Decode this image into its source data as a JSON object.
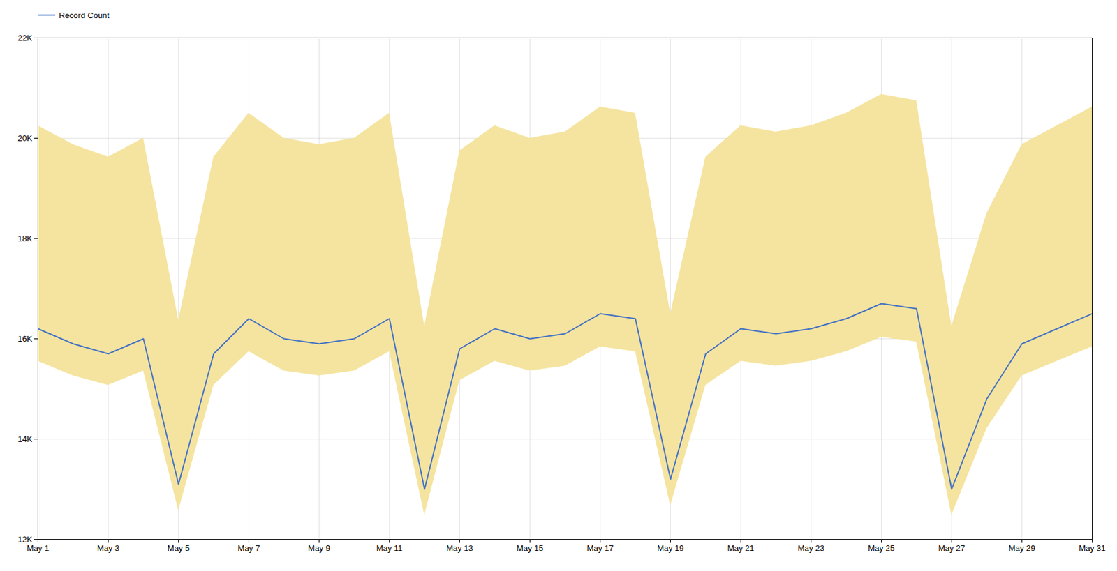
{
  "chart_data": {
    "type": "line",
    "x": [
      1,
      2,
      3,
      4,
      5,
      6,
      7,
      8,
      9,
      10,
      11,
      12,
      13,
      14,
      15,
      16,
      17,
      18,
      19,
      20,
      21,
      22,
      23,
      24,
      25,
      26,
      27,
      28,
      29,
      30,
      31
    ],
    "series": [
      {
        "name": "Record Count",
        "color": "#4472C4",
        "values": [
          16200,
          15900,
          15700,
          16000,
          13100,
          15700,
          16400,
          16000,
          15900,
          16000,
          16400,
          13000,
          15800,
          16200,
          16000,
          16100,
          16500,
          16400,
          13200,
          15700,
          16200,
          16100,
          16200,
          16400,
          16700,
          16600,
          13000,
          14800,
          15900,
          16200,
          16500
        ]
      }
    ],
    "band": {
      "color": "#F5E4A0",
      "lower": [
        15552,
        15264,
        15072,
        15360,
        12576,
        15072,
        15744,
        15360,
        15264,
        15360,
        15744,
        12480,
        15168,
        15552,
        15360,
        15456,
        15840,
        15744,
        12672,
        15072,
        15552,
        15456,
        15552,
        15744,
        16032,
        15936,
        12480,
        14208,
        15264,
        15552,
        15840
      ],
      "upper": [
        20250,
        19875,
        19625,
        20000,
        16375,
        19625,
        20500,
        20000,
        19875,
        20000,
        20500,
        16250,
        19750,
        20250,
        20000,
        20125,
        20625,
        20500,
        16500,
        19625,
        20250,
        20125,
        20250,
        20500,
        20875,
        20750,
        16250,
        18500,
        19875,
        20250,
        20625
      ]
    },
    "xlim": [
      1,
      31
    ],
    "xticks": [
      {
        "value": 1,
        "label": "May 1"
      },
      {
        "value": 3,
        "label": "May 3"
      },
      {
        "value": 5,
        "label": "May 5"
      },
      {
        "value": 7,
        "label": "May 7"
      },
      {
        "value": 9,
        "label": "May 9"
      },
      {
        "value": 11,
        "label": "May 11"
      },
      {
        "value": 13,
        "label": "May 13"
      },
      {
        "value": 15,
        "label": "May 15"
      },
      {
        "value": 17,
        "label": "May 17"
      },
      {
        "value": 19,
        "label": "May 19"
      },
      {
        "value": 21,
        "label": "May 21"
      },
      {
        "value": 23,
        "label": "May 23"
      },
      {
        "value": 25,
        "label": "May 25"
      },
      {
        "value": 27,
        "label": "May 27"
      },
      {
        "value": 29,
        "label": "May 29"
      },
      {
        "value": 31,
        "label": "May 31"
      }
    ],
    "ylim": [
      12000,
      22000
    ],
    "yticks": [
      {
        "value": 12000,
        "label": "12K"
      },
      {
        "value": 14000,
        "label": "14K"
      },
      {
        "value": 16000,
        "label": "16K"
      },
      {
        "value": 18000,
        "label": "18K"
      },
      {
        "value": 20000,
        "label": "20K"
      },
      {
        "value": 22000,
        "label": "22K"
      }
    ],
    "grid": true,
    "legend": "upper left"
  }
}
